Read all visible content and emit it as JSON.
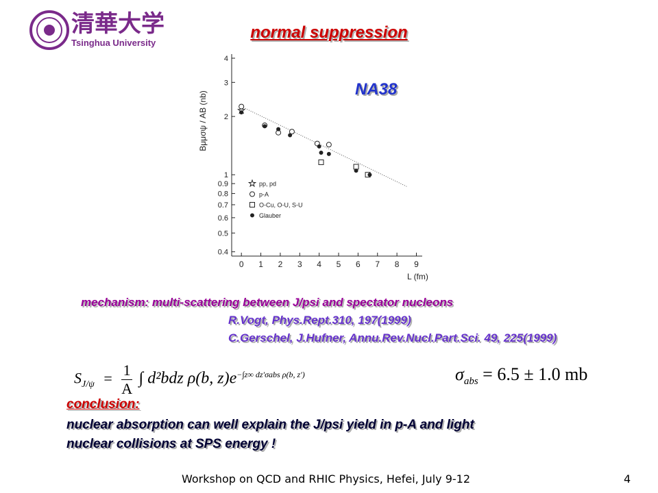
{
  "header": {
    "logo_cn": "清華大学",
    "logo_en": "Tsinghua University"
  },
  "title": "normal suppression",
  "chart_data": {
    "type": "scatter",
    "annotation": "NA38",
    "x_label": "L (fm)",
    "y_label": "Bμμσψ / AB (nb)",
    "log_y": true,
    "xlim": [
      -0.5,
      9.3
    ],
    "ylim": [
      0.38,
      4.2
    ],
    "xticks": [
      0,
      1,
      2,
      3,
      4,
      5,
      6,
      7,
      8,
      9
    ],
    "yticks": [
      0.4,
      0.5,
      0.6,
      0.7,
      0.8,
      0.9,
      1,
      2,
      3,
      4
    ],
    "legend": "lower-left",
    "series": [
      {
        "name": "pp, pd",
        "marker": "star",
        "color": "#222222",
        "x": [
          0
        ],
        "values": [
          2.15
        ]
      },
      {
        "name": "p-A",
        "marker": "circle-open",
        "color": "#222222",
        "x": [
          0,
          1.2,
          1.9,
          2.6,
          3.9,
          4.5
        ],
        "values": [
          2.25,
          1.8,
          1.65,
          1.67,
          1.45,
          1.43
        ]
      },
      {
        "name": "O-Cu, O-U, S-U",
        "marker": "square-open",
        "color": "#222222",
        "x": [
          4.1,
          5.9,
          6.5
        ],
        "values": [
          1.16,
          1.1,
          1.0
        ]
      },
      {
        "name": "Glauber",
        "marker": "circle-filled",
        "color": "#222222",
        "x": [
          0,
          1.2,
          1.9,
          2.5,
          4.0,
          4.1,
          4.5,
          5.9,
          6.6
        ],
        "values": [
          2.1,
          1.78,
          1.72,
          1.6,
          1.4,
          1.3,
          1.28,
          1.05,
          1.0
        ]
      }
    ],
    "trend": {
      "x": [
        0,
        8.5
      ],
      "values": [
        2.25,
        0.87
      ]
    }
  },
  "mechanism": "mechanism:  multi-scattering between J/psi and spectator nucleons",
  "references": [
    "R.Vogt, Phys.Rept.310, 197(1999)",
    "C.Gerschel, J.Hufner, Annu.Rev.Nucl.Part.Sci. 49, 225(1999)"
  ],
  "formula": {
    "lhs": "S",
    "lhs_sub": "J/ψ",
    "eq": "=",
    "num": "1",
    "den": "A",
    "body": "∫ d²bdz ρ(b, z)e",
    "exp": "−∫z∞ dz′σabs ρ(b, z′)"
  },
  "sigma": {
    "symbol": "σ",
    "sub": "abs",
    "rest": "= 6.5 ± 1.0 mb"
  },
  "conclusion": {
    "heading": "conclusion:",
    "lines": [
      "nuclear absorption can well explain the J/psi yield in p-A and light",
      "nuclear collisions at SPS energy !"
    ]
  },
  "footer": {
    "text": "Workshop on QCD and RHIC Physics,  Hefei,  July 9-12",
    "page": "4"
  }
}
